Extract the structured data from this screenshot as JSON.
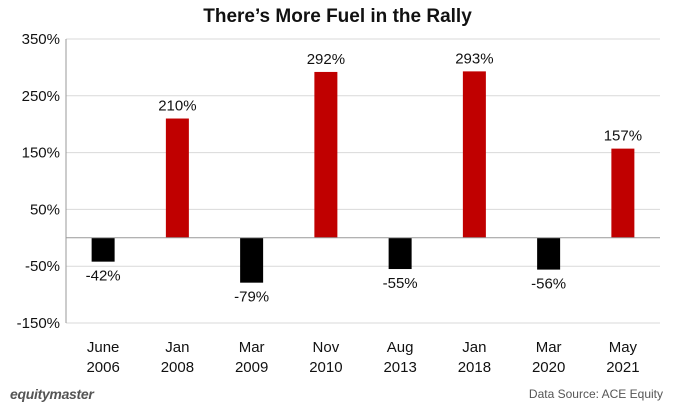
{
  "chart_data": {
    "type": "bar",
    "title": "There’s More Fuel in the Rally",
    "categories": [
      [
        "June",
        "2006"
      ],
      [
        "Jan",
        "2008"
      ],
      [
        "Mar",
        "2009"
      ],
      [
        "Nov",
        "2010"
      ],
      [
        "Aug",
        "2013"
      ],
      [
        "Jan",
        "2018"
      ],
      [
        "Mar",
        "2020"
      ],
      [
        "May",
        "2021"
      ]
    ],
    "values": [
      -42,
      210,
      -79,
      292,
      -55,
      293,
      -56,
      157
    ],
    "data_labels": [
      "-42%",
      "210%",
      "-79%",
      "292%",
      "-55%",
      "293%",
      "-56%",
      "157%"
    ],
    "unit": "%",
    "ylim": [
      -150,
      350
    ],
    "yticks": [
      -150,
      -50,
      50,
      150,
      250,
      350
    ],
    "ytick_labels": [
      "-150%",
      "-50%",
      "50%",
      "150%",
      "250%",
      "350%"
    ],
    "grid": true,
    "colors": {
      "positive": "#c00000",
      "negative": "#000000",
      "grid": "#d9d9d9",
      "axis": "#999999"
    },
    "xlabel": "",
    "ylabel": ""
  },
  "footer": {
    "brand": "equitymaster",
    "source": "Data Source: ACE Equity"
  }
}
